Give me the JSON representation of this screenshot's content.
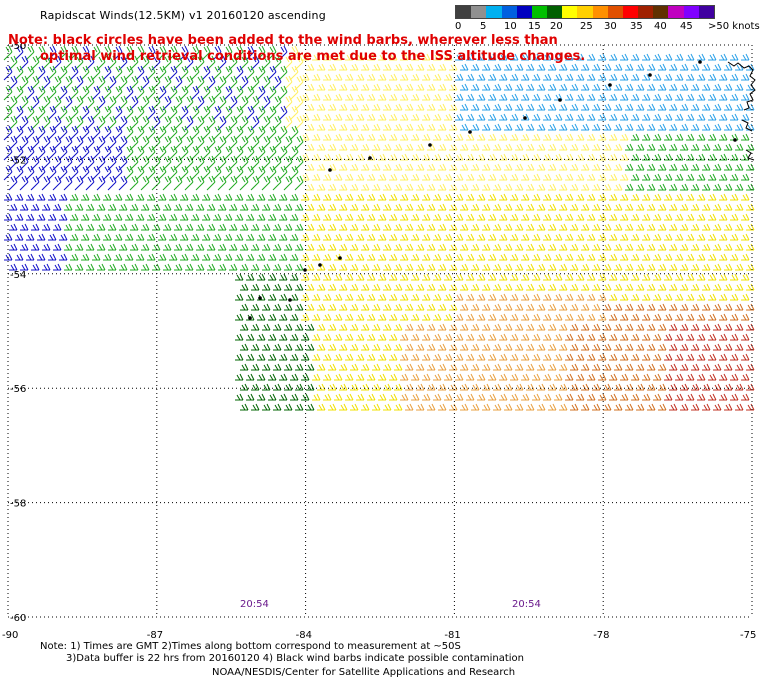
{
  "header": {
    "title": "Rapidscat Winds(12.5KM) v1 20160120 ascending",
    "note_line1": "Note: black circles have been added to the wind barbs, wherever less than",
    "note_line2": "optimal wind retrieval conditions are met due to the ISS altitude changes."
  },
  "legend": {
    "labels": [
      "0",
      "5",
      "10",
      "15",
      "20",
      "25",
      "30",
      "35",
      "40",
      "45",
      ">50 knots"
    ],
    "colors": [
      "#404040",
      "#909090",
      "#00b0f0",
      "#0060e0",
      "#0000c0",
      "#00c000",
      "#006000",
      "#ffff00",
      "#ffd000",
      "#ff9000",
      "#e05000",
      "#ff0000",
      "#a02000",
      "#603000",
      "#c000c0",
      "#8000ff",
      "#4000a0"
    ]
  },
  "map": {
    "lat_labels": [
      "-50",
      "-52",
      "-54",
      "-56",
      "-58",
      "-60"
    ],
    "lon_labels": [
      "-90",
      "-87",
      "-84",
      "-81",
      "-78",
      "-75"
    ],
    "times": [
      "20:54",
      "20:54"
    ],
    "colors": {
      "green": "#22aa22",
      "dark_green": "#006400",
      "blue": "#1010c8",
      "light_blue": "#2aa0e8",
      "yellow": "#f0e000",
      "light_yellow": "#fff060",
      "orange": "#e8a040",
      "dark_orange": "#d07020",
      "red": "#c03020"
    }
  },
  "footer": {
    "note1": "Note: 1) Times are GMT 2)Times along bottom correspond to measurement at ~50S",
    "note2": "3)Data buffer is 22 hrs from 20160120 4) Black wind barbs indicate possible contamination",
    "credit": "NOAA/NESDIS/Center for Satellite Applications and Research"
  }
}
